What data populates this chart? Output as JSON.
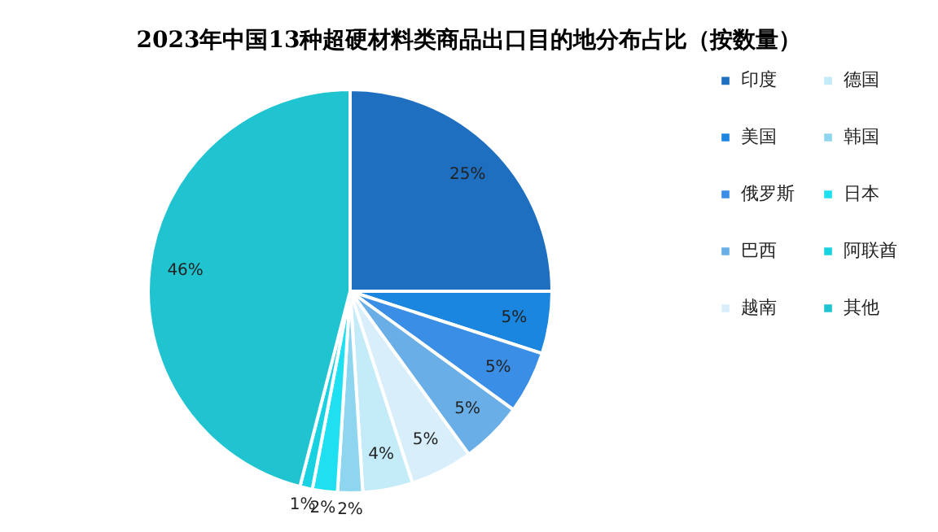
{
  "chart_data": {
    "type": "pie",
    "title": "2023年中国13种超硬材料类商品出口目的地分布占比（按数量）",
    "categories": [
      "印度",
      "美国",
      "俄罗斯",
      "巴西",
      "越南",
      "德国",
      "韩国",
      "日本",
      "阿联酋",
      "其他"
    ],
    "values": [
      25,
      5,
      5,
      5,
      5,
      4,
      2,
      2,
      1,
      46
    ],
    "value_labels": [
      "25%",
      "5%",
      "5%",
      "5%",
      "5%",
      "4%",
      "2%",
      "2%",
      "1%",
      "46%"
    ],
    "colors": [
      "#1e6fc0",
      "#1a86e0",
      "#3a8ee6",
      "#6aaee8",
      "#d8eefa",
      "#c4ebf8",
      "#8ed6f0",
      "#1ee0f0",
      "#18d2e2",
      "#20c4d0"
    ],
    "legend": "right"
  }
}
